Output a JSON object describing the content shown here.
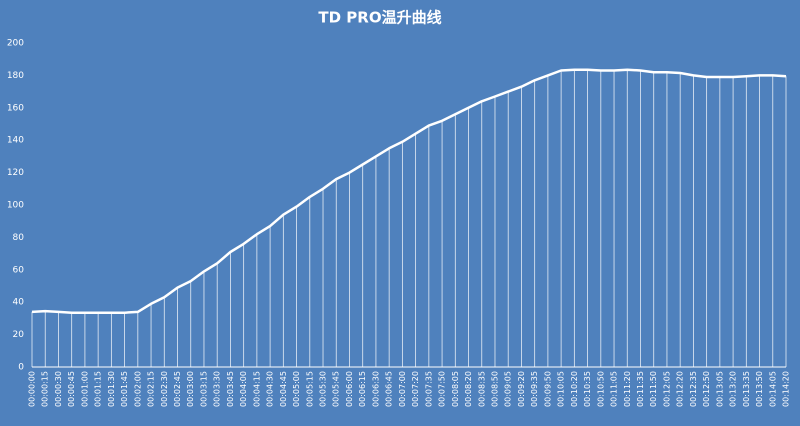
{
  "chart_data": {
    "type": "line",
    "title": "TD PRO温升曲线",
    "categories": [
      "00:00:00",
      "00:00:15",
      "00:00:30",
      "00:00:45",
      "00:01:00",
      "00:01:15",
      "00:01:30",
      "00:01:45",
      "00:02:00",
      "00:02:15",
      "00:02:30",
      "00:02:45",
      "00:03:00",
      "00:03:15",
      "00:03:30",
      "00:03:45",
      "00:04:00",
      "00:04:15",
      "00:04:30",
      "00:04:45",
      "00:05:00",
      "00:05:15",
      "00:05:30",
      "00:05:45",
      "00:06:00",
      "00:06:15",
      "00:06:30",
      "00:06:45",
      "00:07:00",
      "00:07:20",
      "00:07:35",
      "00:07:50",
      "00:08:05",
      "00:08:20",
      "00:08:35",
      "00:08:50",
      "00:09:05",
      "00:09:20",
      "00:09:35",
      "00:09:50",
      "00:10:05",
      "00:10:20",
      "00:10:35",
      "00:10:50",
      "00:11:05",
      "00:11:20",
      "00:11:35",
      "00:11:50",
      "00:12:05",
      "00:12:20",
      "00:12:35",
      "00:12:50",
      "00:13:05",
      "00:13:20",
      "00:13:35",
      "00:13:50",
      "00:14:05",
      "00:14:20"
    ],
    "values": [
      34,
      34.5,
      34,
      33.5,
      33.5,
      33.5,
      33.5,
      33.5,
      34,
      39,
      43,
      49,
      53,
      59,
      64,
      71,
      76,
      82,
      87,
      94,
      99,
      105,
      110,
      116,
      120,
      125,
      130,
      135,
      139,
      144,
      149,
      152,
      156,
      160,
      164,
      167,
      170,
      173,
      177,
      180,
      183,
      183.5,
      183.5,
      183,
      183,
      183.5,
      183,
      182,
      182,
      181.5,
      180,
      179,
      179,
      179,
      179.5,
      180,
      180,
      179.5
    ],
    "color": "#ffffff",
    "drop_lines": true,
    "ylim": [
      0,
      200
    ],
    "yticks": [
      0,
      20,
      40,
      60,
      80,
      100,
      120,
      140,
      160,
      180,
      200
    ]
  }
}
